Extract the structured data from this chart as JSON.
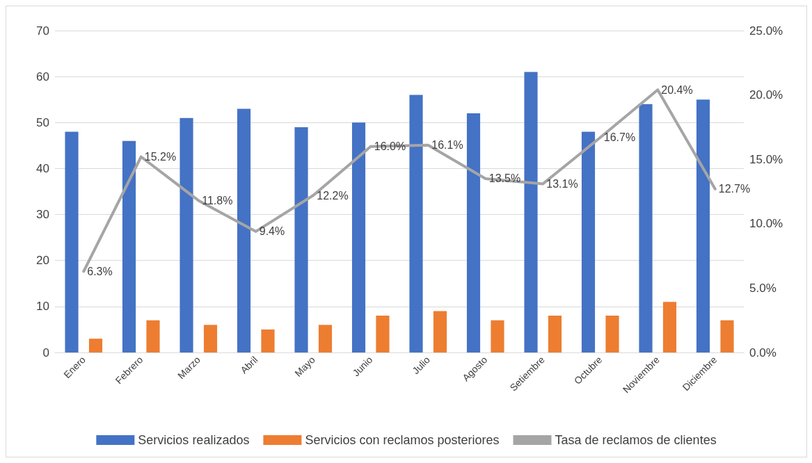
{
  "chart_data": {
    "type": "bar",
    "categories": [
      "Enero",
      "Febrero",
      "Marzo",
      "Abril",
      "Mayo",
      "Junio",
      "Julio",
      "Agosto",
      "Setiembre",
      "Octubre",
      "Noviembre",
      "Diciembre"
    ],
    "series": [
      {
        "name": "Servicios realizados",
        "color": "#4472c4",
        "values": [
          48,
          46,
          51,
          53,
          49,
          50,
          56,
          52,
          61,
          48,
          54,
          55
        ]
      },
      {
        "name": "Servicios con reclamos posteriores",
        "color": "#ed7d31",
        "values": [
          3,
          7,
          6,
          5,
          6,
          8,
          9,
          7,
          8,
          8,
          11,
          7
        ]
      },
      {
        "name": "Tasa de reclamos de clientes",
        "type": "line",
        "axis": "y2",
        "color": "#a5a5a5",
        "values": [
          6.3,
          15.2,
          11.8,
          9.4,
          12.2,
          16.0,
          16.1,
          13.5,
          13.1,
          16.7,
          20.4,
          12.7
        ],
        "value_labels": [
          "6.3%",
          "15.2%",
          "11.8%",
          "9.4%",
          "12.2%",
          "16.0%",
          "16.1%",
          "13.5%",
          "13.1%",
          "16.7%",
          "20.4%",
          "12.7%"
        ]
      }
    ],
    "ylim": [
      0,
      70
    ],
    "yticks": [
      0,
      10,
      20,
      30,
      40,
      50,
      60,
      70
    ],
    "y2lim": [
      0,
      25
    ],
    "y2ticks": [
      {
        "value": 0,
        "label": "0.0%"
      },
      {
        "value": 5,
        "label": "5.0%"
      },
      {
        "value": 10,
        "label": "10.0%"
      },
      {
        "value": 15,
        "label": "15.0%"
      },
      {
        "value": 20,
        "label": "20.0%"
      },
      {
        "value": 25,
        "label": "25.0%"
      }
    ],
    "grid": "y",
    "legend": "bottom",
    "marker": "none",
    "line_style": "solid"
  }
}
